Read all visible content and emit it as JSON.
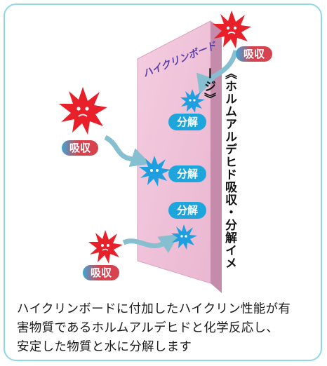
{
  "board": {
    "label": "ハイクリンボード"
  },
  "title": "《ホルムアルデヒド吸収・分解イメージ》",
  "labels": {
    "absorb": "吸収",
    "decompose": "分解"
  },
  "caption": "ハイクリンボードに付加したハイクリン性能が有\n害物質であるホルムアルデヒドと化学反応し、\n安定した物質と水に分解します",
  "colors": {
    "absorb_pill": "#d9424d",
    "absorb_pill_to": "#2f9fd4",
    "decompose_pill": "#1ea6dc",
    "red_molecule": "#e8202a",
    "blue_molecule": "#1e9fe0",
    "board": "#f2c6dc",
    "arrow": "#7fb9c9"
  }
}
